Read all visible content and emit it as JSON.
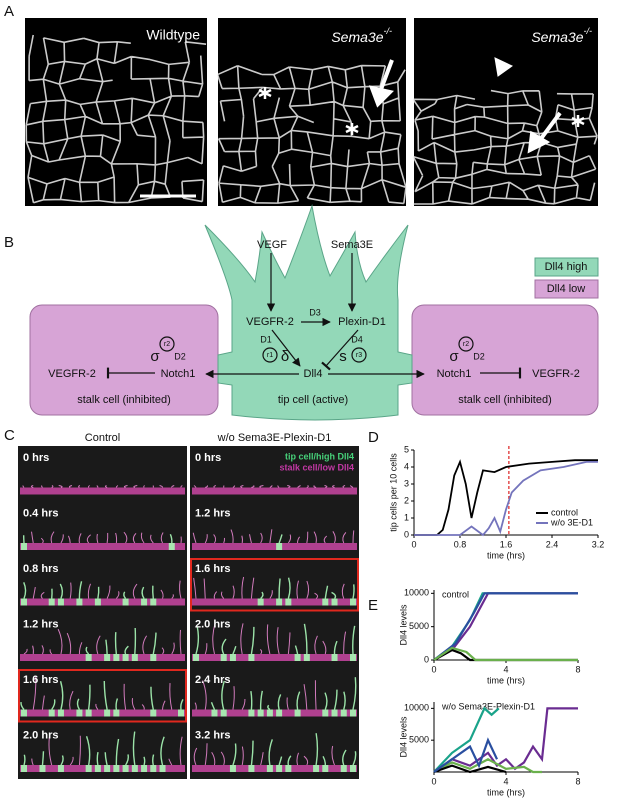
{
  "panel_a": {
    "label": "A",
    "images": [
      {
        "title": "Wildtype"
      },
      {
        "title": "Sema3e",
        "superscript": "-/-"
      },
      {
        "title": "Sema3e",
        "superscript": "-/-"
      }
    ]
  },
  "panel_b": {
    "label": "B",
    "legend": [
      "Dll4 high",
      "Dll4 low"
    ],
    "tip_cell": {
      "inputs": [
        "VEGF",
        "Sema3E"
      ],
      "receptors": [
        "VEGFR-2",
        "Plexin-D1"
      ],
      "link": "D3",
      "left_rate": {
        "delay": "D1",
        "rate": "r1",
        "symbol": "δ"
      },
      "right_rate": {
        "delay": "D4",
        "rate": "r3",
        "symbol": "s"
      },
      "ligand": "Dll4",
      "caption": "tip cell (active)"
    },
    "stalk_left": {
      "rate": "r2",
      "symbol": "σ",
      "delay": "D2",
      "receptor": "VEGFR-2",
      "notch": "Notch1",
      "caption": "stalk cell (inhibited)"
    },
    "stalk_right": {
      "rate": "r2",
      "symbol": "σ",
      "delay": "D2",
      "receptor": "VEGFR-2",
      "notch": "Notch1",
      "caption": "stalk cell (inhibited)"
    }
  },
  "panel_c": {
    "label": "C",
    "legend": [
      "tip cell/high Dll4",
      "stalk cell/low Dll4"
    ],
    "columns": [
      {
        "title": "Control",
        "frames": [
          "0 hrs",
          "0.4 hrs",
          "0.8 hrs",
          "1.2 hrs",
          "1.6 hrs",
          "2.0 hrs"
        ],
        "highlighted": 4
      },
      {
        "title": "w/o Sema3E-Plexin-D1",
        "frames": [
          "0 hrs",
          "1.2 hrs",
          "1.6 hrs",
          "2.0 hrs",
          "2.4 hrs",
          "3.2 hrs"
        ],
        "highlighted": 2
      }
    ]
  },
  "panel_d": {
    "label": "D",
    "chart": {
      "type": "line",
      "xlabel": "time (hrs)",
      "ylabel": "tip cells per 10 cells",
      "xlim": [
        0,
        3.2
      ],
      "ylim": [
        0,
        5
      ],
      "xticks": [
        0,
        0.8,
        1.6,
        2.4,
        3.2
      ],
      "yticks": [
        0,
        1,
        2,
        3,
        4,
        5
      ],
      "highlight_time": 1.65,
      "highlight_color": "#d22",
      "series": [
        {
          "name": "control",
          "color": "#000000",
          "x": [
            0,
            0.4,
            0.5,
            0.6,
            0.7,
            0.8,
            0.9,
            1.0,
            1.1,
            1.2,
            1.4,
            1.6,
            2.0,
            2.4,
            2.8,
            3.2
          ],
          "values": [
            0,
            0,
            0.3,
            1.5,
            3.5,
            4.3,
            3.0,
            1.0,
            2.5,
            3.8,
            3.7,
            4.0,
            4.2,
            4.3,
            4.4,
            4.4
          ]
        },
        {
          "name": "w/o 3E-D1",
          "color": "#7474bc",
          "x": [
            0,
            0.8,
            1.0,
            1.2,
            1.3,
            1.4,
            1.5,
            1.6,
            1.7,
            1.9,
            2.2,
            2.6,
            3.0,
            3.2
          ],
          "values": [
            0,
            0,
            0.5,
            0,
            0.4,
            1.0,
            0.2,
            1.5,
            2.5,
            3.2,
            3.8,
            4.0,
            4.3,
            4.3
          ]
        }
      ]
    }
  },
  "panel_e": {
    "label": "E",
    "charts": [
      {
        "type": "line",
        "subtitle": "control",
        "xlabel": "time (hrs)",
        "ylabel": "Dll4 levels",
        "xlim": [
          0,
          8
        ],
        "ylim": [
          0,
          10500
        ],
        "xticks": [
          0,
          4,
          8
        ],
        "yticks": [
          0,
          5000,
          10000
        ],
        "series": [
          {
            "color": "#1aa38a",
            "x": [
              0,
              1,
              2,
              2.7,
              8
            ],
            "values": [
              0,
              2000,
              6000,
              10000,
              10000
            ]
          },
          {
            "color": "#6a2c91",
            "x": [
              0,
              1,
              2,
              3,
              8
            ],
            "values": [
              0,
              1500,
              5000,
              10000,
              10000
            ]
          },
          {
            "color": "#2a4fa0",
            "x": [
              0,
              1.2,
              2.2,
              2.8,
              8
            ],
            "values": [
              0,
              2500,
              7000,
              10000,
              10000
            ]
          },
          {
            "color": "#000000",
            "x": [
              0,
              1,
              1.5,
              2,
              8
            ],
            "values": [
              0,
              1500,
              1000,
              0,
              0
            ]
          },
          {
            "color": "#6ab04c",
            "x": [
              0,
              1,
              1.8,
              2.3,
              8
            ],
            "values": [
              0,
              1800,
              1200,
              0,
              0
            ]
          }
        ]
      },
      {
        "type": "line",
        "subtitle": "w/o Sema3E-Plexin-D1",
        "xlabel": "time (hrs)",
        "ylabel": "Dll4 levels",
        "xlim": [
          0,
          8
        ],
        "ylim": [
          0,
          11000
        ],
        "xticks": [
          0,
          4,
          8
        ],
        "yticks": [
          5000,
          10000
        ],
        "series": [
          {
            "color": "#1aa38a",
            "x": [
              0,
              1,
              2,
              2.8,
              3.2,
              3.6
            ],
            "values": [
              0,
              3000,
              5000,
              10000,
              9000,
              10000
            ]
          },
          {
            "color": "#6a2c91",
            "x": [
              0,
              1,
              2,
              3,
              3.5,
              4,
              4.5,
              5,
              5.5,
              6,
              6.3,
              8
            ],
            "values": [
              0,
              2000,
              1000,
              3000,
              1000,
              2000,
              500,
              1500,
              4000,
              2000,
              10000,
              10000
            ]
          },
          {
            "color": "#6ab04c",
            "x": [
              0,
              1,
              2,
              3,
              4,
              5,
              5.5,
              6
            ],
            "values": [
              0,
              1500,
              500,
              2000,
              500,
              800,
              0,
              0
            ]
          },
          {
            "color": "#000000",
            "x": [
              0,
              1,
              2,
              3,
              4
            ],
            "values": [
              0,
              1000,
              0,
              800,
              0
            ]
          },
          {
            "color": "#2a4fa0",
            "x": [
              0,
              1,
              2,
              2.5,
              3,
              3.5
            ],
            "values": [
              0,
              2000,
              4000,
              1000,
              5000,
              2000
            ]
          }
        ]
      }
    ]
  }
}
